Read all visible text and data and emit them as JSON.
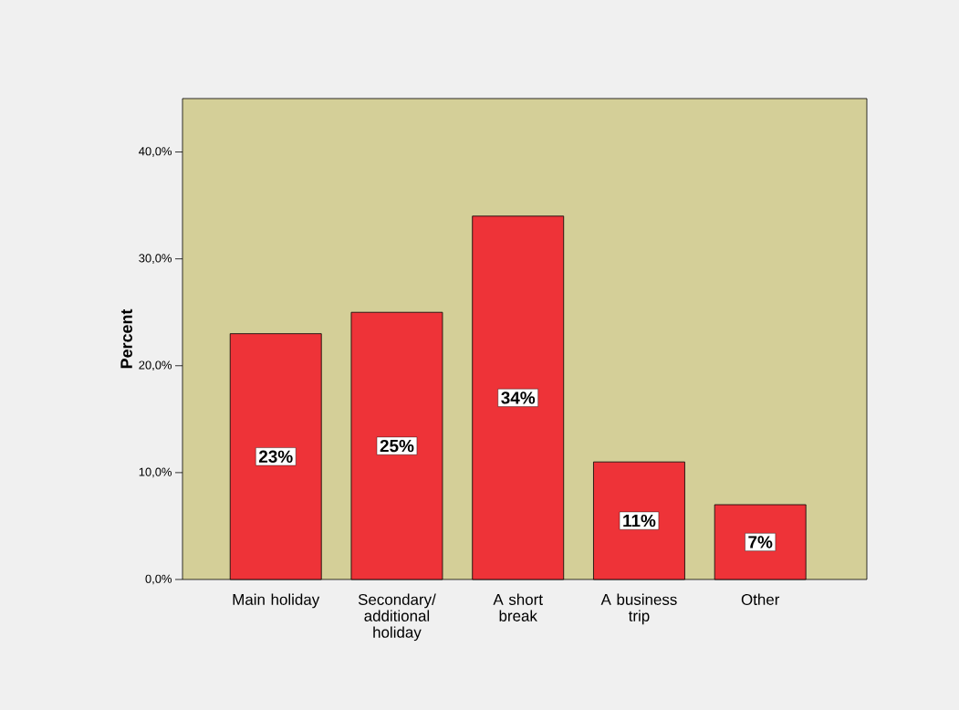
{
  "chart_data": {
    "type": "bar",
    "ylabel": "Percent",
    "categories": [
      "Main holiday",
      "Secondary/ additional holiday",
      "A short break",
      "A business trip",
      "Other"
    ],
    "values": [
      23,
      25,
      34,
      11,
      7
    ],
    "value_labels": [
      "23%",
      "25%",
      "34%",
      "11%",
      "7%"
    ],
    "color": "#ee3338",
    "ylim": [
      0,
      45
    ],
    "yticks": [
      {
        "value": 0,
        "label": "0,0%"
      },
      {
        "value": 10,
        "label": "10,0%"
      },
      {
        "value": 20,
        "label": "20,0%"
      },
      {
        "value": 30,
        "label": "30,0%"
      },
      {
        "value": 40,
        "label": "40,0%"
      }
    ]
  }
}
